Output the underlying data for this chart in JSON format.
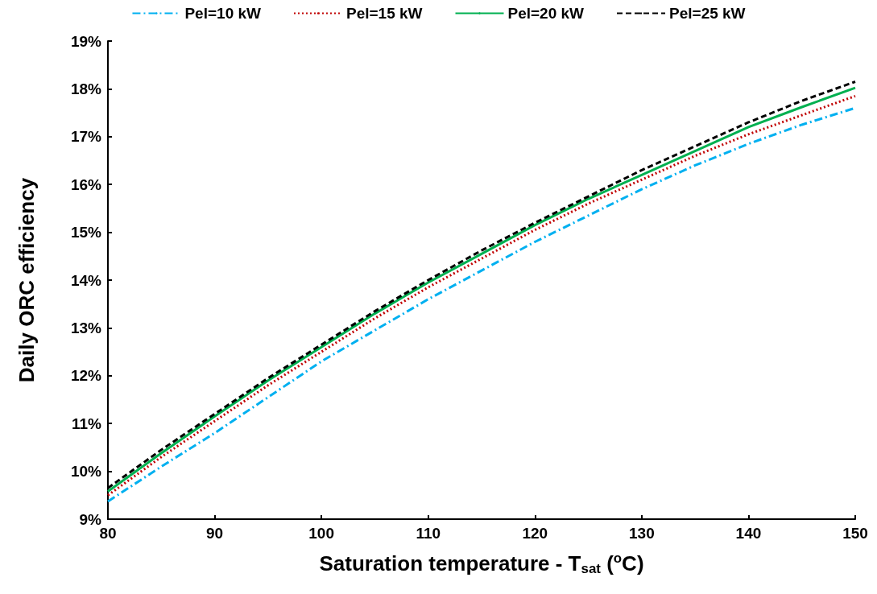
{
  "chart_data": {
    "type": "line",
    "xlabel": "Saturation temperature - T$_{sat}$ ($^{o}$C)",
    "ylabel": "Daily ORC efficiency",
    "x": [
      80,
      85,
      90,
      95,
      100,
      105,
      110,
      115,
      120,
      125,
      130,
      135,
      140,
      145,
      150
    ],
    "xlim": [
      80,
      150
    ],
    "xticks": [
      80,
      90,
      100,
      110,
      120,
      130,
      140,
      150
    ],
    "ylim": [
      9,
      19
    ],
    "yticks": [
      {
        "value": 9,
        "label": "9%"
      },
      {
        "value": 10,
        "label": "10%"
      },
      {
        "value": 11,
        "label": "11%"
      },
      {
        "value": 12,
        "label": "12%"
      },
      {
        "value": 13,
        "label": "13%"
      },
      {
        "value": 14,
        "label": "14%"
      },
      {
        "value": 15,
        "label": "15%"
      },
      {
        "value": 16,
        "label": "16%"
      },
      {
        "value": 17,
        "label": "17%"
      },
      {
        "value": 18,
        "label": "18%"
      },
      {
        "value": 19,
        "label": "19%"
      }
    ],
    "grid": false,
    "legend": "top",
    "marker": "none",
    "series": [
      {
        "name": "Pel=10 kW",
        "color": "#00b0f0",
        "line_style": "dashdot",
        "values": [
          9.37,
          10.1,
          10.8,
          11.55,
          12.3,
          12.95,
          13.6,
          14.2,
          14.8,
          15.35,
          15.9,
          16.4,
          16.85,
          17.25,
          17.6
        ]
      },
      {
        "name": "Pel=15 kW",
        "color": "#c00000",
        "line_style": "dotted",
        "values": [
          9.5,
          10.3,
          11.05,
          11.8,
          12.5,
          13.2,
          13.85,
          14.45,
          15.05,
          15.6,
          16.1,
          16.6,
          17.05,
          17.45,
          17.85
        ]
      },
      {
        "name": "Pel=20 kW",
        "color": "#00b050",
        "line_style": "solid",
        "values": [
          9.58,
          10.38,
          11.15,
          11.9,
          12.6,
          13.3,
          13.95,
          14.55,
          15.15,
          15.7,
          16.2,
          16.7,
          17.2,
          17.62,
          18.02
        ]
      },
      {
        "name": "Pel=25 kW",
        "color": "#000000",
        "line_style": "dashed",
        "values": [
          9.65,
          10.45,
          11.2,
          11.95,
          12.65,
          13.35,
          14.0,
          14.62,
          15.2,
          15.75,
          16.3,
          16.8,
          17.3,
          17.75,
          18.15
        ]
      }
    ]
  }
}
